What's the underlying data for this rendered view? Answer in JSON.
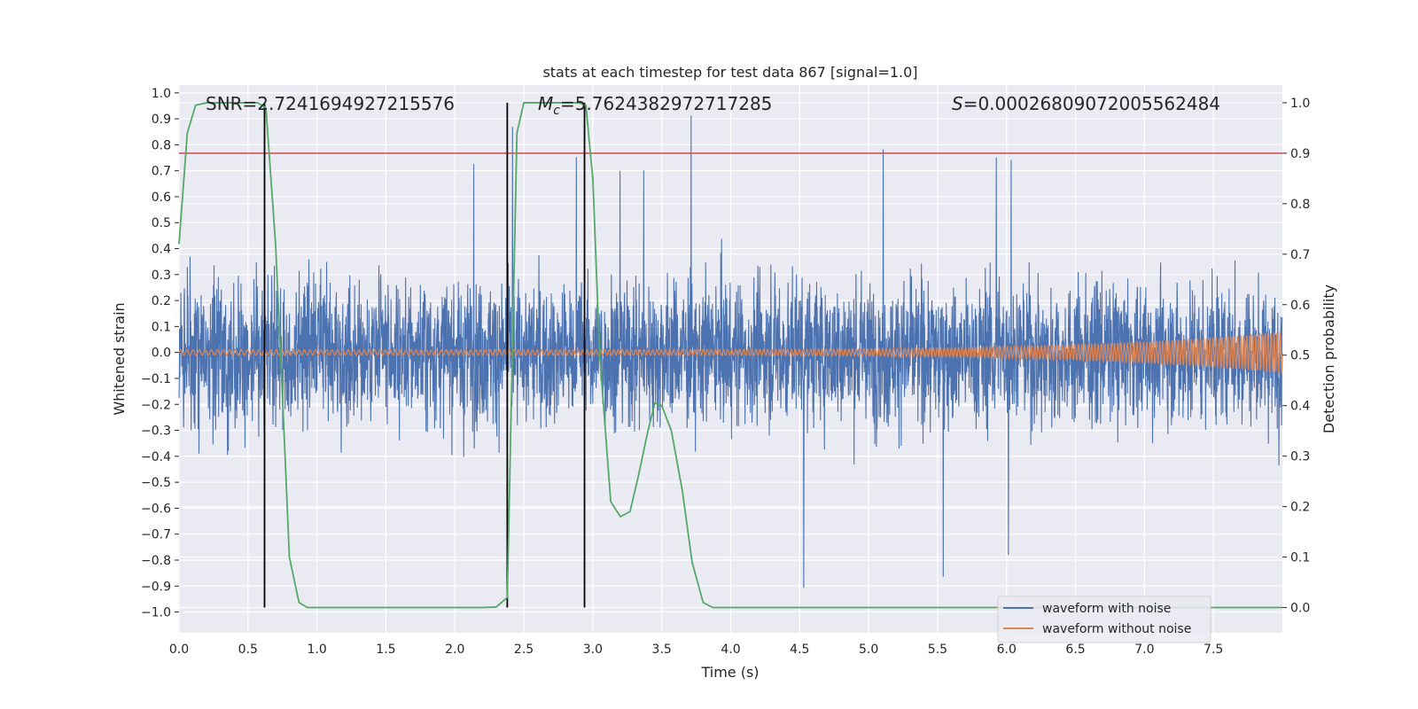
{
  "chart_data": {
    "type": "line",
    "title": "stats at each timestep for test data 867 [signal=1.0]",
    "xlabel": "Time (s)",
    "ylabel_left": "Whitened strain",
    "ylabel_right": "Detection probability",
    "xlim": [
      0.0,
      8.0
    ],
    "ylim_left": [
      -1.08,
      1.03
    ],
    "ylim_right": [
      -0.05,
      1.035
    ],
    "x_ticks": [
      "0.0",
      "0.5",
      "1.0",
      "1.5",
      "2.0",
      "2.5",
      "3.0",
      "3.5",
      "4.0",
      "4.5",
      "5.0",
      "5.5",
      "6.0",
      "6.5",
      "7.0",
      "7.5"
    ],
    "y_left_ticks": [
      "1.0",
      "0.9",
      "0.8",
      "0.7",
      "0.6",
      "0.5",
      "0.4",
      "0.3",
      "0.2",
      "0.1",
      "0.0",
      "−0.1",
      "−0.2",
      "−0.3",
      "−0.4",
      "−0.5",
      "−0.6",
      "−0.7",
      "−0.8",
      "−0.9",
      "−1.0"
    ],
    "y_right_ticks": [
      "1.0",
      "0.9",
      "0.8",
      "0.7",
      "0.6",
      "0.5",
      "0.4",
      "0.3",
      "0.2",
      "0.1",
      "0.0"
    ],
    "annotations": {
      "snr": "SNR=2.7241694927215576",
      "mc_symbol": "M",
      "mc_sub": "c",
      "mc_value": "=5.7624382972717285",
      "s_symbol": "S",
      "s_value": "=0.00026809072005562484"
    },
    "threshold": {
      "value_right": 0.9,
      "color": "#c44e52"
    },
    "vertical_lines": [
      0.62,
      2.38,
      2.94
    ],
    "series": [
      {
        "name": "waveform with noise",
        "color": "#4c72b0",
        "kind": "noise",
        "typical_amplitude": 0.35,
        "peak_amplitude": 0.93
      },
      {
        "name": "waveform without noise",
        "color": "#dd8452",
        "kind": "chirp",
        "amplitude_start": 0.01,
        "amplitude_end": 0.08
      },
      {
        "name": "detection probability",
        "color": "#55a868",
        "axis": "right",
        "x": [
          0.0,
          0.06,
          0.12,
          0.2,
          0.3,
          0.4,
          0.5,
          0.57,
          0.63,
          0.7,
          0.75,
          0.8,
          0.87,
          0.93,
          1.0,
          1.5,
          2.0,
          2.2,
          2.3,
          2.38,
          2.45,
          2.5,
          2.6,
          2.8,
          2.9,
          2.95,
          3.0,
          3.05,
          3.13,
          3.2,
          3.27,
          3.33,
          3.4,
          3.45,
          3.5,
          3.57,
          3.65,
          3.72,
          3.8,
          3.87,
          3.95,
          4.2,
          5.0,
          6.0,
          7.0,
          8.0
        ],
        "values": [
          0.72,
          0.94,
          0.995,
          1.0,
          1.0,
          1.0,
          1.0,
          1.0,
          0.99,
          0.72,
          0.42,
          0.1,
          0.01,
          0.0,
          0.0,
          0.0,
          0.0,
          0.0,
          0.001,
          0.02,
          0.94,
          1.0,
          1.0,
          1.0,
          1.0,
          0.995,
          0.85,
          0.5,
          0.21,
          0.18,
          0.19,
          0.26,
          0.35,
          0.405,
          0.4,
          0.35,
          0.23,
          0.09,
          0.01,
          0.0,
          0.0,
          0.0,
          0.0,
          0.0,
          0.0,
          0.0
        ]
      }
    ],
    "legend": [
      "waveform with noise",
      "waveform without noise"
    ],
    "legend_position": "lower-right"
  }
}
